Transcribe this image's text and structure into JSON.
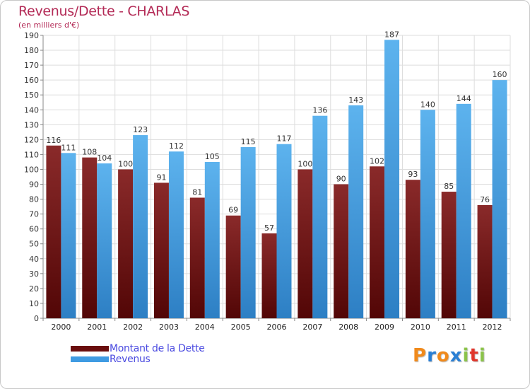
{
  "chart_data": {
    "type": "bar",
    "title": "Revenus/Dette - CHARLAS",
    "subtitle": "(en milliers d'€)",
    "categories": [
      "2000",
      "2001",
      "2002",
      "2003",
      "2004",
      "2005",
      "2006",
      "2007",
      "2008",
      "2009",
      "2010",
      "2011",
      "2012"
    ],
    "series": [
      {
        "name": "Montant de la Dette",
        "color": "#7a1212",
        "values": [
          116,
          108,
          100,
          91,
          81,
          69,
          57,
          100,
          90,
          102,
          93,
          85,
          76
        ]
      },
      {
        "name": "Revenus",
        "color": "#4aa3e6",
        "values": [
          111,
          104,
          123,
          112,
          105,
          115,
          117,
          136,
          143,
          187,
          140,
          144,
          160
        ]
      }
    ],
    "ylim": [
      0,
      190
    ],
    "yticks": [
      0,
      10,
      20,
      30,
      40,
      50,
      60,
      70,
      80,
      90,
      100,
      110,
      120,
      130,
      140,
      150,
      160,
      170,
      180,
      190
    ],
    "grid": true,
    "legend_position": "bottom-left"
  },
  "logo": {
    "text": "Proxiti",
    "letters": [
      "P",
      "r",
      "o",
      "x",
      "i",
      "t",
      "i"
    ],
    "colors": [
      "#f08a1c",
      "#2a7fd4",
      "#f08a1c",
      "#2a7fd4",
      "#8bc34a",
      "#e0362c",
      "#8bc34a"
    ]
  }
}
